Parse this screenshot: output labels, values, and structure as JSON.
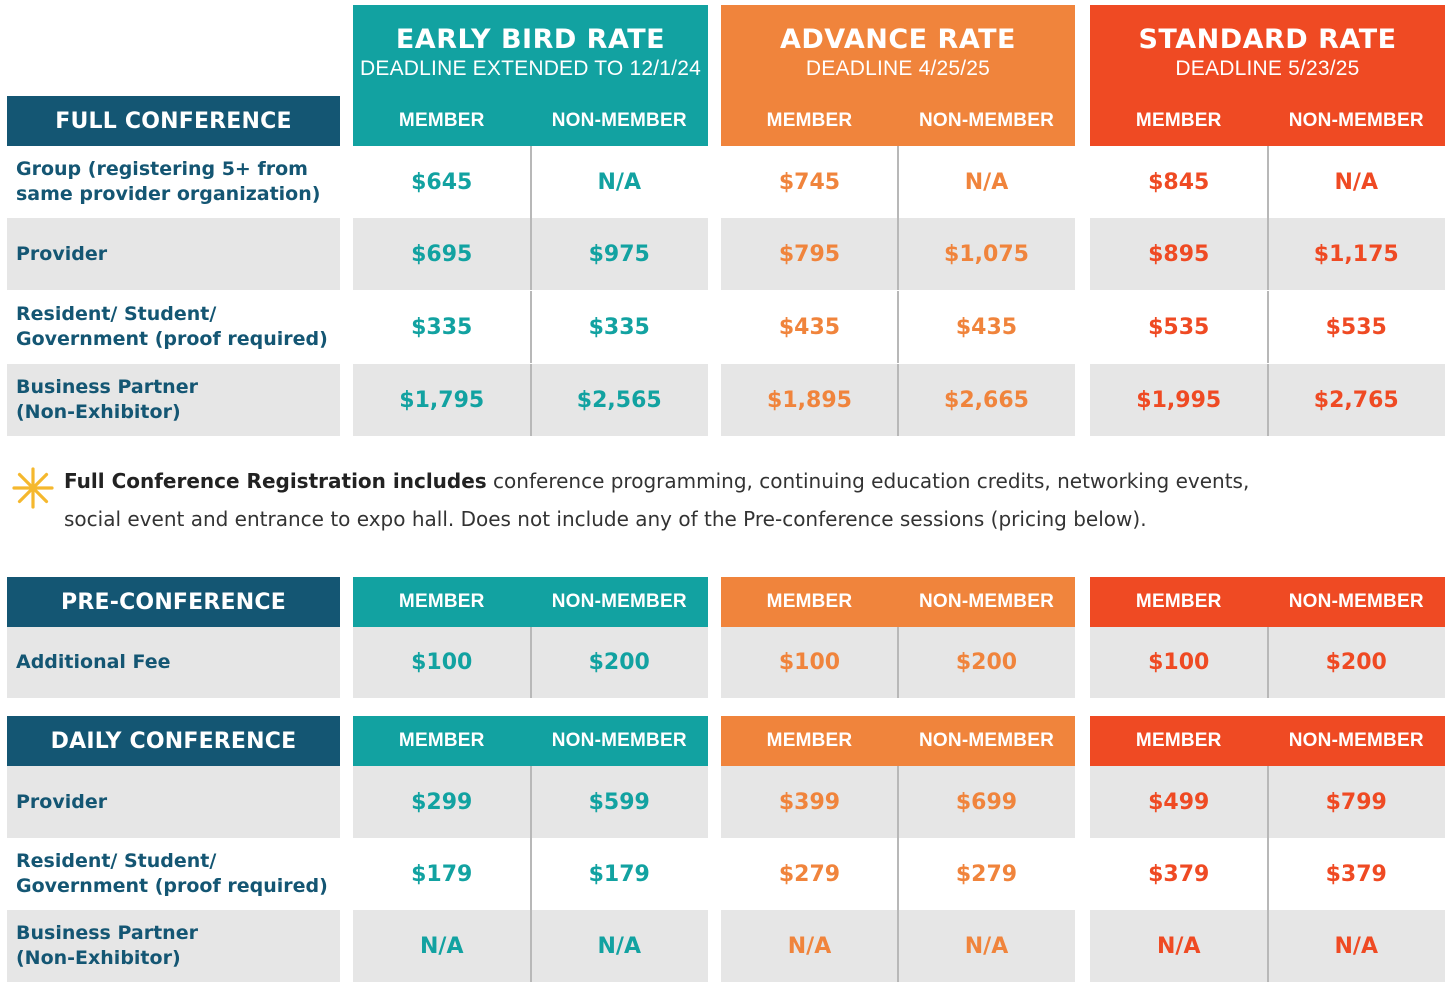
{
  "tiers": [
    {
      "title": "EARLY BIRD RATE",
      "subtitle": "DEADLINE EXTENDED TO 12/1/24",
      "color": "#12a2a1"
    },
    {
      "title": "ADVANCE RATE",
      "subtitle": "DEADLINE 4/25/25",
      "color": "#f0843c"
    },
    {
      "title": "STANDARD RATE",
      "subtitle": "DEADLINE 5/23/25",
      "color": "#ef4a23"
    }
  ],
  "col_labels": {
    "member": "MEMBER",
    "non_member": "NON-MEMBER"
  },
  "label_color": "#145673",
  "full": {
    "label": "FULL CONFERENCE",
    "rows": [
      {
        "label_lines": [
          "Group (registering 5+ from",
          "same provider organization)"
        ],
        "prices": [
          "$645",
          "N/A",
          "$745",
          "N/A",
          "$845",
          "N/A"
        ]
      },
      {
        "label_lines": [
          "Provider"
        ],
        "prices": [
          "$695",
          "$975",
          "$795",
          "$1,075",
          "$895",
          "$1,175"
        ]
      },
      {
        "label_lines": [
          "Resident/ Student/",
          "Government (proof required)"
        ],
        "prices": [
          "$335",
          "$335",
          "$435",
          "$435",
          "$535",
          "$535"
        ]
      },
      {
        "label_lines": [
          "Business Partner",
          "(Non-Exhibitor)"
        ],
        "prices": [
          "$1,795",
          "$2,565",
          "$1,895",
          "$2,665",
          "$1,995",
          "$2,765"
        ]
      }
    ]
  },
  "note": {
    "bold": "Full Conference Registration includes",
    "line1_rest": " conference programming, continuing education credits, networking events,",
    "line2": "social event and entrance to expo hall. Does not include any of the Pre-conference sessions (pricing below).",
    "icon": "asterisk-star-icon",
    "icon_color": "#f5b82e"
  },
  "pre": {
    "label": "PRE-CONFERENCE",
    "rows": [
      {
        "label_lines": [
          "Additional Fee"
        ],
        "prices": [
          "$100",
          "$200",
          "$100",
          "$200",
          "$100",
          "$200"
        ]
      }
    ]
  },
  "daily": {
    "label": "DAILY CONFERENCE",
    "rows": [
      {
        "label_lines": [
          "Provider"
        ],
        "prices": [
          "$299",
          "$599",
          "$399",
          "$699",
          "$499",
          "$799"
        ]
      },
      {
        "label_lines": [
          "Resident/ Student/",
          "Government (proof required)"
        ],
        "prices": [
          "$179",
          "$179",
          "$279",
          "$279",
          "$379",
          "$379"
        ]
      },
      {
        "label_lines": [
          "Business Partner",
          "(Non-Exhibitor)"
        ],
        "prices": [
          "N/A",
          "N/A",
          "N/A",
          "N/A",
          "N/A",
          "N/A"
        ]
      }
    ]
  }
}
